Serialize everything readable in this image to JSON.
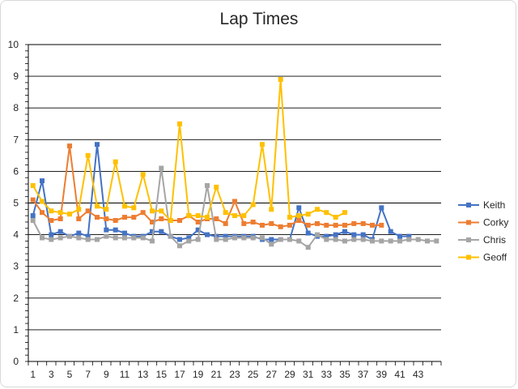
{
  "chart_data": {
    "type": "line",
    "title": "Lap Times",
    "xlabel": "",
    "ylabel": "",
    "ylim": [
      0,
      10
    ],
    "yticks": [
      0,
      1,
      2,
      3,
      4,
      5,
      6,
      7,
      8,
      9,
      10
    ],
    "xticks": [
      1,
      3,
      5,
      7,
      9,
      11,
      13,
      15,
      17,
      19,
      21,
      23,
      25,
      27,
      29,
      31,
      33,
      35,
      37,
      39,
      41,
      43
    ],
    "x_count": 45,
    "grid": "horizontal",
    "legend_position": "right",
    "series": [
      {
        "name": "Keith",
        "color": "#4472c4",
        "values": [
          4.6,
          5.7,
          4.0,
          4.1,
          3.95,
          4.05,
          3.95,
          6.85,
          4.15,
          4.15,
          4.05,
          3.95,
          3.95,
          4.1,
          4.1,
          3.95,
          3.85,
          3.9,
          4.15,
          4.0,
          3.95,
          3.95,
          3.95,
          3.95,
          3.95,
          3.85,
          3.85,
          3.85,
          3.85,
          4.85,
          4.05,
          3.95,
          3.95,
          4.0,
          4.1,
          4.0,
          4.0,
          3.85,
          4.85,
          4.1,
          3.95,
          3.95
        ]
      },
      {
        "name": "Corky",
        "color": "#ed7d31",
        "values": [
          5.1,
          4.7,
          4.45,
          4.5,
          6.8,
          4.5,
          4.75,
          4.55,
          4.5,
          4.45,
          4.55,
          4.55,
          4.7,
          4.4,
          4.5,
          4.45,
          4.45,
          4.6,
          4.4,
          4.5,
          4.5,
          4.35,
          5.05,
          4.35,
          4.4,
          4.3,
          4.35,
          4.25,
          4.3,
          4.45,
          4.3,
          4.35,
          4.3,
          4.3,
          4.3,
          4.35,
          4.35,
          4.3,
          4.3
        ]
      },
      {
        "name": "Chris",
        "color": "#a5a5a5",
        "values": [
          4.45,
          3.9,
          3.85,
          3.9,
          3.95,
          3.9,
          3.85,
          3.85,
          3.95,
          3.9,
          3.9,
          3.9,
          3.9,
          3.8,
          6.1,
          3.95,
          3.65,
          3.8,
          3.85,
          5.55,
          3.85,
          3.85,
          3.9,
          3.9,
          3.9,
          3.9,
          3.7,
          3.85,
          3.85,
          3.8,
          3.6,
          4.0,
          3.85,
          3.85,
          3.8,
          3.85,
          3.85,
          3.8,
          3.8,
          3.8,
          3.8,
          3.85,
          3.85,
          3.8,
          3.8
        ]
      },
      {
        "name": "Geoff",
        "color": "#ffc000",
        "values": [
          5.55,
          5.05,
          4.75,
          4.7,
          4.65,
          4.8,
          6.5,
          4.9,
          4.8,
          6.3,
          4.9,
          4.85,
          5.9,
          4.75,
          4.75,
          4.45,
          7.5,
          4.6,
          4.6,
          4.55,
          5.5,
          4.7,
          4.6,
          4.6,
          4.95,
          6.85,
          4.8,
          8.9,
          4.55,
          4.6,
          4.65,
          4.8,
          4.7,
          4.55,
          4.7
        ]
      }
    ]
  }
}
